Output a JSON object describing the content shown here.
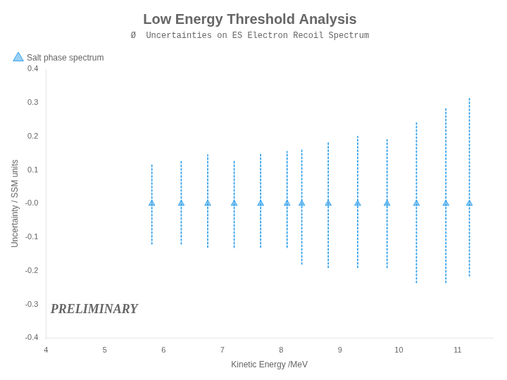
{
  "chart_data": {
    "type": "scatter",
    "title": "Low Energy Threshold Analysis",
    "subtitle": "Ø  Uncertainties on ES Electron Recoil Spectrum",
    "x_label": "Kinetic Energy /MeV",
    "y_label": "Uncertainty / SSM units",
    "annotation": "PRELIMINARY",
    "x": [
      5.8,
      6.3,
      6.75,
      7.2,
      7.65,
      8.1,
      8.35,
      8.8,
      9.3,
      9.8,
      10.3,
      10.8,
      11.2
    ],
    "series": [
      {
        "name": "Salt phase spectrum",
        "marker": "triangle",
        "line_style": "dotted",
        "values": [
          0.0,
          0.0,
          0.0,
          0.0,
          0.0,
          0.0,
          0.0,
          0.0,
          0.0,
          0.0,
          0.0,
          0.0,
          0.0
        ],
        "upper": [
          0.12,
          0.13,
          0.145,
          0.13,
          0.15,
          0.155,
          0.16,
          0.185,
          0.2,
          0.19,
          0.245,
          0.285,
          0.315
        ],
        "lower": [
          -0.12,
          -0.12,
          -0.13,
          -0.13,
          -0.13,
          -0.13,
          -0.18,
          -0.19,
          -0.19,
          -0.19,
          -0.235,
          -0.235,
          -0.215
        ]
      }
    ],
    "xlim": [
      4,
      11.6
    ],
    "ylim": [
      -0.4,
      0.4
    ],
    "xticks": [
      4,
      5,
      6,
      7,
      8,
      9,
      10,
      11
    ],
    "yticks": [
      -0.4,
      -0.3,
      -0.2,
      -0.1,
      {
        "value": 0.0,
        "label": "-0.0"
      },
      0.1,
      0.2,
      0.3,
      0.4
    ],
    "grid": false,
    "legend": "upper left"
  }
}
